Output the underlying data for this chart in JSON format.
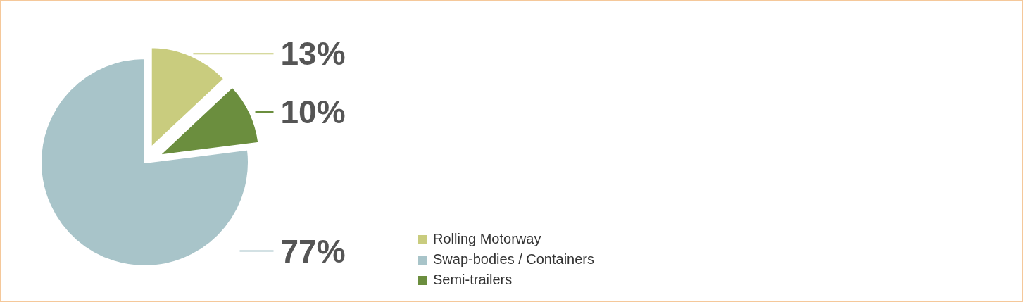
{
  "chart_data": {
    "type": "pie",
    "categories": [
      "Rolling Motorway",
      "Swap-bodies / Containers",
      "Semi-trailers"
    ],
    "values": [
      13,
      77,
      10
    ],
    "colors": [
      "#c9cc7e",
      "#a8c4c9",
      "#6b8e3e"
    ],
    "value_labels": [
      "13%",
      "77%",
      "10%"
    ],
    "legend": "right"
  }
}
